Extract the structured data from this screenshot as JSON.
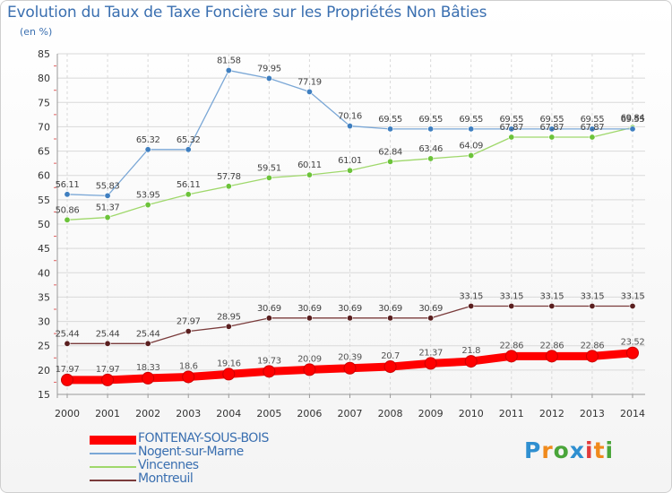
{
  "header": {
    "title": "Evolution du Taux de Taxe Foncière sur les Propriétés Non Bâties",
    "unit": "(en %)"
  },
  "brand": {
    "text": "Proxiti",
    "colors": [
      "#2f8fd0",
      "#f08a1c",
      "#4aa53a",
      "#2f8fd0",
      "#e23b3b",
      "#f08a1c",
      "#4aa53a"
    ]
  },
  "chart_data": {
    "type": "line",
    "title": "Evolution du Taux de Taxe Foncière sur les Propriétés Non Bâties",
    "ylabel": "(en %)",
    "xlabel": "",
    "x": [
      2000,
      2001,
      2002,
      2003,
      2004,
      2005,
      2006,
      2007,
      2008,
      2009,
      2010,
      2011,
      2012,
      2013,
      2014
    ],
    "ylim": [
      15,
      85
    ],
    "yticks": [
      15,
      20,
      25,
      30,
      35,
      40,
      45,
      50,
      55,
      60,
      65,
      70,
      75,
      80,
      85
    ],
    "grid": true,
    "legend": "bottom-left",
    "series": [
      {
        "name": "FONTENAY-SOUS-BOIS",
        "color": "#ff0000",
        "marker_color": "#ff0000",
        "label_color": "#555555",
        "width": "thick",
        "values": [
          17.97,
          17.97,
          18.33,
          18.6,
          19.16,
          19.73,
          20.09,
          20.39,
          20.7,
          21.37,
          21.8,
          22.86,
          22.86,
          22.86,
          23.52
        ]
      },
      {
        "name": "Nogent-sur-Marne",
        "color": "#7aa7d6",
        "marker_color": "#3f7fc0",
        "label_color": "#444444",
        "width": "thin",
        "values": [
          56.11,
          55.83,
          65.32,
          65.32,
          81.58,
          79.95,
          77.19,
          70.16,
          69.55,
          69.55,
          69.55,
          69.55,
          69.55,
          69.55,
          69.55
        ]
      },
      {
        "name": "Vincennes",
        "color": "#9fd86b",
        "marker_color": "#6cc33a",
        "label_color": "#444444",
        "width": "thin",
        "values": [
          50.86,
          51.37,
          53.95,
          56.11,
          57.78,
          59.51,
          60.11,
          61.01,
          62.84,
          63.46,
          64.09,
          67.87,
          67.87,
          67.87,
          69.84
        ]
      },
      {
        "name": "Montreuil",
        "color": "#7a3b3b",
        "marker_color": "#5a1f1f",
        "label_color": "#444444",
        "width": "thin",
        "values": [
          25.44,
          25.44,
          25.44,
          27.97,
          28.95,
          30.69,
          30.69,
          30.69,
          30.69,
          30.69,
          33.15,
          33.15,
          33.15,
          33.15,
          33.15
        ]
      }
    ]
  }
}
